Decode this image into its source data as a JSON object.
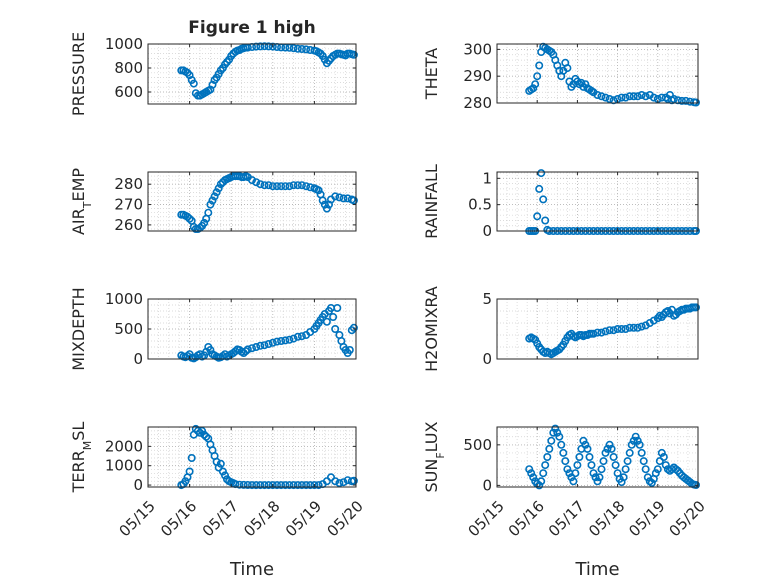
{
  "figure_title": "Figure 1 high",
  "colors": {
    "marker": "#0072BD",
    "axes": "#262626",
    "grid": "#b0b0b0",
    "background": "#ffffff"
  },
  "chart_data": [
    {
      "id": "pressure",
      "type": "scatter",
      "ylabel": "PRESSURE",
      "title": "Figure 1 high",
      "xlabel": "",
      "xticks": [
        "05/15",
        "05/16",
        "05/17",
        "05/18",
        "05/19",
        "05/20"
      ],
      "ylim": [
        500,
        1000
      ],
      "yticks": [
        600,
        800,
        1000
      ],
      "grid": true,
      "x": [
        0.8,
        0.85,
        0.9,
        0.95,
        1.0,
        1.05,
        1.1,
        1.15,
        1.2,
        1.25,
        1.3,
        1.35,
        1.4,
        1.45,
        1.5,
        1.55,
        1.6,
        1.65,
        1.7,
        1.75,
        1.8,
        1.85,
        1.9,
        1.95,
        2.0,
        2.05,
        2.1,
        2.15,
        2.2,
        2.25,
        2.3,
        2.35,
        2.4,
        2.5,
        2.6,
        2.7,
        2.8,
        2.9,
        3.0,
        3.1,
        3.2,
        3.3,
        3.4,
        3.5,
        3.6,
        3.7,
        3.8,
        3.9,
        4.0,
        4.05,
        4.1,
        4.15,
        4.2,
        4.25,
        4.3,
        4.35,
        4.4,
        4.45,
        4.5,
        4.55,
        4.6,
        4.65,
        4.7,
        4.75,
        4.8,
        4.85,
        4.9,
        4.95
      ],
      "y": [
        780,
        780,
        770,
        760,
        740,
        700,
        670,
        590,
        570,
        570,
        580,
        590,
        600,
        610,
        620,
        660,
        700,
        720,
        750,
        780,
        800,
        830,
        850,
        870,
        900,
        920,
        935,
        945,
        950,
        960,
        965,
        970,
        970,
        975,
        978,
        980,
        982,
        980,
        978,
        975,
        972,
        970,
        968,
        965,
        960,
        958,
        955,
        950,
        945,
        940,
        930,
        920,
        900,
        870,
        840,
        860,
        880,
        900,
        910,
        920,
        920,
        915,
        910,
        905,
        920,
        920,
        915,
        910
      ]
    },
    {
      "id": "theta",
      "type": "scatter",
      "ylabel": "THETA",
      "xlabel": "",
      "xticks": [
        "05/15",
        "05/16",
        "05/17",
        "05/18",
        "05/19",
        "05/20"
      ],
      "ylim": [
        280,
        302
      ],
      "yticks": [
        280,
        290,
        300
      ],
      "grid": true,
      "x": [
        0.8,
        0.85,
        0.9,
        0.95,
        1.0,
        1.05,
        1.1,
        1.15,
        1.2,
        1.25,
        1.3,
        1.35,
        1.4,
        1.45,
        1.5,
        1.55,
        1.6,
        1.65,
        1.7,
        1.75,
        1.8,
        1.85,
        1.9,
        1.95,
        2.0,
        2.05,
        2.1,
        2.15,
        2.2,
        2.25,
        2.3,
        2.35,
        2.4,
        2.5,
        2.6,
        2.7,
        2.8,
        2.9,
        3.0,
        3.1,
        3.2,
        3.3,
        3.4,
        3.5,
        3.6,
        3.7,
        3.8,
        3.9,
        4.0,
        4.1,
        4.2,
        4.25,
        4.3,
        4.35,
        4.4,
        4.5,
        4.6,
        4.7,
        4.8,
        4.9,
        4.95
      ],
      "y": [
        284.5,
        285,
        285.5,
        287,
        290,
        294,
        299,
        301,
        300.5,
        300,
        299.5,
        299,
        298,
        296,
        294,
        292,
        290,
        292,
        295,
        293,
        288,
        286,
        287,
        289,
        288,
        287,
        287.5,
        286,
        287,
        285.5,
        285,
        284.5,
        284,
        283,
        282.5,
        282,
        281.5,
        281,
        281.5,
        282,
        282,
        282.5,
        282.5,
        282.5,
        283,
        282.5,
        283,
        282,
        281.5,
        282,
        282,
        281.5,
        283,
        281,
        281.5,
        281,
        280.8,
        280.8,
        280.5,
        280.3,
        280.2
      ]
    },
    {
      "id": "air_temp",
      "type": "scatter",
      "ylabel": "AIR_TEMP",
      "xlabel": "",
      "xticks": [
        "05/15",
        "05/16",
        "05/17",
        "05/18",
        "05/19",
        "05/20"
      ],
      "ylim": [
        257,
        286
      ],
      "yticks": [
        260,
        270,
        280
      ],
      "grid": true,
      "x": [
        0.8,
        0.85,
        0.9,
        0.95,
        1.0,
        1.05,
        1.1,
        1.15,
        1.2,
        1.25,
        1.3,
        1.35,
        1.4,
        1.45,
        1.5,
        1.55,
        1.6,
        1.65,
        1.7,
        1.75,
        1.8,
        1.85,
        1.9,
        1.95,
        2.0,
        2.05,
        2.1,
        2.15,
        2.2,
        2.25,
        2.3,
        2.35,
        2.4,
        2.5,
        2.6,
        2.7,
        2.8,
        2.9,
        3.0,
        3.1,
        3.2,
        3.3,
        3.4,
        3.5,
        3.6,
        3.7,
        3.8,
        3.9,
        4.0,
        4.05,
        4.1,
        4.15,
        4.2,
        4.25,
        4.3,
        4.35,
        4.4,
        4.5,
        4.6,
        4.7,
        4.8,
        4.9,
        4.95
      ],
      "y": [
        265,
        265,
        264.5,
        264,
        263,
        262,
        259,
        258,
        258,
        258.5,
        259.5,
        261,
        263,
        266,
        270,
        272,
        274,
        276,
        278,
        280,
        281,
        282,
        282.5,
        283,
        283.5,
        284,
        284,
        284,
        284,
        283.5,
        283.5,
        284,
        283.5,
        282,
        281,
        280,
        279.5,
        279.5,
        279,
        279,
        279,
        279,
        279,
        279.5,
        279.5,
        279.5,
        279,
        278.5,
        278,
        277.5,
        277,
        275,
        272,
        270,
        268,
        270,
        272.5,
        274,
        273.5,
        273,
        273,
        272.5,
        272
      ]
    },
    {
      "id": "rainfall",
      "type": "scatter",
      "ylabel": "RAINFALL",
      "xlabel": "",
      "xticks": [
        "05/15",
        "05/16",
        "05/17",
        "05/18",
        "05/19",
        "05/20"
      ],
      "ylim": [
        0,
        1.12
      ],
      "yticks": [
        0,
        0.5,
        1
      ],
      "grid": true,
      "x": [
        0.8,
        0.85,
        0.9,
        0.95,
        1.0,
        1.05,
        1.1,
        1.15,
        1.2,
        1.25,
        1.3,
        1.4,
        1.5,
        1.6,
        1.7,
        1.8,
        1.9,
        2.0,
        2.1,
        2.2,
        2.3,
        2.4,
        2.5,
        2.6,
        2.7,
        2.8,
        2.9,
        3.0,
        3.1,
        3.2,
        3.3,
        3.4,
        3.5,
        3.6,
        3.7,
        3.8,
        3.9,
        4.0,
        4.1,
        4.2,
        4.3,
        4.4,
        4.5,
        4.6,
        4.7,
        4.8,
        4.9,
        4.95
      ],
      "y": [
        0,
        0,
        0,
        0,
        0.28,
        0.8,
        1.1,
        0.6,
        0.2,
        0.02,
        0,
        0,
        0,
        0,
        0,
        0,
        0,
        0,
        0,
        0,
        0,
        0,
        0,
        0,
        0,
        0,
        0,
        0,
        0,
        0,
        0,
        0,
        0,
        0,
        0,
        0,
        0,
        0,
        0,
        0,
        0,
        0,
        0,
        0,
        0,
        0,
        0,
        0
      ]
    },
    {
      "id": "mixdepth",
      "type": "scatter",
      "ylabel": "MIXDEPTH",
      "xlabel": "",
      "xticks": [
        "05/15",
        "05/16",
        "05/17",
        "05/18",
        "05/19",
        "05/20"
      ],
      "ylim": [
        0,
        1000
      ],
      "yticks": [
        0,
        500,
        1000
      ],
      "grid": true,
      "x": [
        0.8,
        0.85,
        0.9,
        0.95,
        1.0,
        1.05,
        1.1,
        1.15,
        1.2,
        1.25,
        1.3,
        1.35,
        1.4,
        1.45,
        1.5,
        1.55,
        1.6,
        1.65,
        1.7,
        1.75,
        1.8,
        1.85,
        1.9,
        1.95,
        2.0,
        2.05,
        2.1,
        2.15,
        2.2,
        2.25,
        2.3,
        2.35,
        2.4,
        2.5,
        2.6,
        2.7,
        2.8,
        2.9,
        3.0,
        3.1,
        3.2,
        3.3,
        3.4,
        3.5,
        3.6,
        3.7,
        3.8,
        3.9,
        4.0,
        4.05,
        4.1,
        4.15,
        4.2,
        4.25,
        4.3,
        4.35,
        4.4,
        4.45,
        4.5,
        4.55,
        4.6,
        4.65,
        4.7,
        4.75,
        4.8,
        4.85,
        4.9,
        4.95
      ],
      "y": [
        60,
        40,
        30,
        50,
        80,
        20,
        10,
        30,
        60,
        80,
        40,
        60,
        120,
        200,
        150,
        80,
        60,
        40,
        20,
        30,
        50,
        80,
        40,
        60,
        80,
        100,
        130,
        160,
        150,
        120,
        100,
        130,
        160,
        180,
        200,
        220,
        230,
        250,
        270,
        290,
        300,
        310,
        320,
        340,
        370,
        380,
        400,
        450,
        500,
        550,
        600,
        650,
        700,
        750,
        620,
        800,
        850,
        700,
        500,
        850,
        400,
        300,
        200,
        150,
        100,
        150,
        480,
        520
      ]
    },
    {
      "id": "h2omixra",
      "type": "scatter",
      "ylabel": "H2OMIXRA",
      "xlabel": "",
      "xticks": [
        "05/15",
        "05/16",
        "05/17",
        "05/18",
        "05/19",
        "05/20"
      ],
      "ylim": [
        0,
        5
      ],
      "yticks": [
        0,
        5
      ],
      "grid": true,
      "x": [
        0.8,
        0.85,
        0.9,
        0.95,
        1.0,
        1.05,
        1.1,
        1.15,
        1.2,
        1.25,
        1.3,
        1.35,
        1.4,
        1.45,
        1.5,
        1.55,
        1.6,
        1.65,
        1.7,
        1.75,
        1.8,
        1.85,
        1.9,
        1.95,
        2.0,
        2.05,
        2.1,
        2.15,
        2.2,
        2.25,
        2.3,
        2.35,
        2.4,
        2.5,
        2.6,
        2.7,
        2.8,
        2.9,
        3.0,
        3.1,
        3.2,
        3.3,
        3.4,
        3.5,
        3.6,
        3.7,
        3.8,
        3.9,
        4.0,
        4.05,
        4.1,
        4.15,
        4.2,
        4.25,
        4.3,
        4.35,
        4.4,
        4.45,
        4.5,
        4.55,
        4.6,
        4.65,
        4.7,
        4.75,
        4.8,
        4.85,
        4.9,
        4.95
      ],
      "y": [
        1.7,
        1.8,
        1.7,
        1.6,
        1.3,
        1.0,
        0.8,
        0.6,
        0.5,
        0.6,
        0.5,
        0.4,
        0.5,
        0.6,
        0.7,
        0.8,
        1.0,
        1.2,
        1.5,
        1.8,
        2.0,
        2.1,
        1.9,
        1.8,
        1.9,
        2.0,
        2.0,
        1.9,
        2.0,
        2.0,
        2.1,
        2.1,
        2.1,
        2.2,
        2.2,
        2.3,
        2.4,
        2.4,
        2.5,
        2.5,
        2.5,
        2.6,
        2.6,
        2.6,
        2.7,
        2.8,
        3.0,
        3.2,
        3.4,
        3.6,
        3.5,
        3.7,
        3.9,
        4.0,
        3.8,
        4.1,
        3.6,
        3.7,
        3.9,
        4.0,
        4.1,
        4.1,
        4.2,
        4.2,
        4.2,
        4.3,
        4.3,
        4.3
      ]
    },
    {
      "id": "terr_msl",
      "type": "scatter",
      "ylabel": "TERR_MSL",
      "xlabel": "Time",
      "xticks": [
        "05/15",
        "05/16",
        "05/17",
        "05/18",
        "05/19",
        "05/20"
      ],
      "ylim": [
        -100,
        3000
      ],
      "yticks": [
        0,
        1000,
        2000
      ],
      "grid": true,
      "x": [
        0.8,
        0.85,
        0.9,
        0.95,
        1.0,
        1.05,
        1.1,
        1.15,
        1.2,
        1.25,
        1.3,
        1.35,
        1.4,
        1.45,
        1.5,
        1.55,
        1.6,
        1.65,
        1.7,
        1.75,
        1.8,
        1.85,
        1.9,
        1.95,
        2.0,
        2.05,
        2.1,
        2.2,
        2.3,
        2.4,
        2.5,
        2.6,
        2.7,
        2.8,
        2.9,
        3.0,
        3.1,
        3.2,
        3.3,
        3.4,
        3.5,
        3.6,
        3.7,
        3.8,
        3.9,
        4.0,
        4.1,
        4.2,
        4.3,
        4.4,
        4.5,
        4.6,
        4.7,
        4.8,
        4.9,
        4.95
      ],
      "y": [
        0,
        50,
        200,
        400,
        700,
        1400,
        2600,
        2900,
        2800,
        2700,
        2800,
        2600,
        2500,
        2400,
        2100,
        1800,
        1500,
        1200,
        900,
        1100,
        700,
        500,
        300,
        200,
        150,
        100,
        50,
        20,
        10,
        5,
        0,
        0,
        0,
        0,
        0,
        0,
        0,
        0,
        0,
        0,
        0,
        0,
        0,
        0,
        0,
        0,
        0,
        50,
        200,
        400,
        200,
        100,
        150,
        250,
        200,
        220
      ]
    },
    {
      "id": "sun_flux",
      "type": "scatter",
      "ylabel": "SUN_FLUX",
      "xlabel": "Time",
      "xticks": [
        "05/15",
        "05/16",
        "05/17",
        "05/18",
        "05/19",
        "05/20"
      ],
      "ylim": [
        -20,
        720
      ],
      "yticks": [
        0,
        500
      ],
      "grid": true,
      "x": [
        0.8,
        0.85,
        0.9,
        0.95,
        1.0,
        1.05,
        1.1,
        1.15,
        1.2,
        1.25,
        1.3,
        1.35,
        1.4,
        1.45,
        1.5,
        1.55,
        1.6,
        1.65,
        1.7,
        1.75,
        1.8,
        1.85,
        1.9,
        1.95,
        2.0,
        2.05,
        2.1,
        2.15,
        2.2,
        2.25,
        2.3,
        2.35,
        2.4,
        2.45,
        2.5,
        2.55,
        2.6,
        2.65,
        2.7,
        2.75,
        2.8,
        2.85,
        2.9,
        2.95,
        3.0,
        3.05,
        3.1,
        3.15,
        3.2,
        3.25,
        3.3,
        3.35,
        3.4,
        3.45,
        3.5,
        3.55,
        3.6,
        3.65,
        3.7,
        3.75,
        3.8,
        3.85,
        3.9,
        3.95,
        4.0,
        4.05,
        4.1,
        4.15,
        4.2,
        4.25,
        4.3,
        4.35,
        4.4,
        4.45,
        4.5,
        4.55,
        4.6,
        4.65,
        4.7,
        4.75,
        4.8,
        4.85,
        4.9,
        4.95
      ],
      "y": [
        200,
        150,
        100,
        50,
        20,
        0,
        50,
        150,
        250,
        350,
        450,
        550,
        650,
        700,
        650,
        600,
        500,
        400,
        300,
        200,
        150,
        100,
        50,
        150,
        250,
        350,
        450,
        550,
        500,
        450,
        350,
        250,
        150,
        100,
        50,
        100,
        200,
        300,
        400,
        450,
        500,
        450,
        350,
        250,
        150,
        80,
        40,
        100,
        200,
        300,
        400,
        500,
        550,
        600,
        550,
        500,
        400,
        300,
        200,
        100,
        50,
        30,
        80,
        150,
        200,
        300,
        400,
        350,
        250,
        200,
        180,
        200,
        220,
        200,
        180,
        150,
        120,
        100,
        80,
        60,
        40,
        20,
        10,
        5
      ]
    }
  ]
}
